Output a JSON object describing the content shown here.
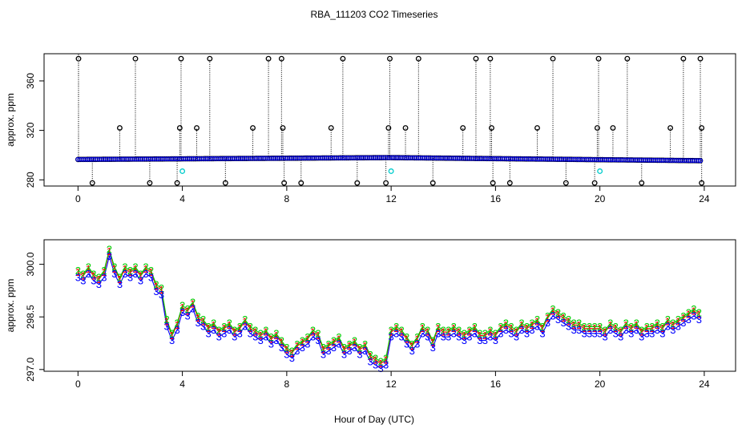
{
  "chart_data": [
    {
      "type": "scatter",
      "title": "RBA_111203  CO2 Timeseries",
      "ylabel": "approx. ppm",
      "xlim": [
        -1.3,
        25.2
      ],
      "ylim": [
        275,
        382
      ],
      "xticks": [
        0,
        4,
        8,
        12,
        16,
        20,
        24
      ],
      "yticks": [
        280,
        320,
        360
      ],
      "grid": false,
      "colors": {
        "raw": "#000000",
        "flagged": "#00cccc",
        "filtered": "#0000ff"
      },
      "baseline": {
        "x_start": 0.0,
        "x_end": 23.9,
        "y_start": 296.5,
        "y_mid": 298.0,
        "y_end": 295.5
      },
      "high_spikes_x": [
        0.02,
        2.2,
        3.95,
        5.05,
        7.3,
        7.8,
        10.15,
        11.95,
        13.05,
        15.25,
        15.8,
        18.2,
        19.95,
        21.05,
        23.2,
        23.85
      ],
      "mid_spikes_x": [
        1.6,
        3.9,
        4.55,
        6.7,
        7.85,
        9.7,
        11.9,
        12.55,
        14.75,
        15.85,
        17.6,
        19.9,
        20.5,
        22.7,
        23.9
      ],
      "low_spikes_x": [
        0.55,
        2.75,
        3.8,
        5.65,
        7.9,
        8.55,
        10.7,
        11.8,
        13.6,
        15.9,
        16.55,
        18.7,
        19.8,
        21.6,
        23.9
      ],
      "flagged_points": [
        {
          "x": 4.0,
          "y": 287
        },
        {
          "x": 12.0,
          "y": 287
        },
        {
          "x": 20.0,
          "y": 287
        }
      ]
    },
    {
      "type": "line",
      "title": "",
      "ylabel": "approx. ppm",
      "xlabel": "Hour of Day (UTC)",
      "xlim": [
        -1.3,
        25.2
      ],
      "ylim": [
        296.95,
        300.7
      ],
      "xticks": [
        0,
        4,
        8,
        12,
        16,
        20,
        24
      ],
      "yticks": [
        297.0,
        298.5,
        300.0
      ],
      "grid": false,
      "series": [
        {
          "symbol": "1",
          "color": "#ff0000",
          "offset": 0.07
        },
        {
          "symbol": "2",
          "color": "#00cc00",
          "offset": 0.12
        },
        {
          "symbol": "3",
          "color": "#0000ff",
          "offset": -0.07
        }
      ],
      "x": [
        0.0,
        0.2,
        0.4,
        0.6,
        0.8,
        1.0,
        1.2,
        1.4,
        1.6,
        1.8,
        2.0,
        2.2,
        2.4,
        2.6,
        2.8,
        3.0,
        3.2,
        3.4,
        3.6,
        3.8,
        4.0,
        4.2,
        4.4,
        4.6,
        4.8,
        5.0,
        5.2,
        5.4,
        5.6,
        5.8,
        6.0,
        6.2,
        6.4,
        6.6,
        6.8,
        7.0,
        7.2,
        7.4,
        7.6,
        7.8,
        8.0,
        8.2,
        8.4,
        8.6,
        8.8,
        9.0,
        9.2,
        9.4,
        9.6,
        9.8,
        10.0,
        10.2,
        10.4,
        10.6,
        10.8,
        11.0,
        11.2,
        11.4,
        11.6,
        11.8,
        12.0,
        12.2,
        12.4,
        12.6,
        12.8,
        13.0,
        13.2,
        13.4,
        13.6,
        13.8,
        14.0,
        14.2,
        14.4,
        14.6,
        14.8,
        15.0,
        15.2,
        15.4,
        15.6,
        15.8,
        16.0,
        16.2,
        16.4,
        16.6,
        16.8,
        17.0,
        17.2,
        17.4,
        17.6,
        17.8,
        18.0,
        18.2,
        18.4,
        18.6,
        18.8,
        19.0,
        19.2,
        19.4,
        19.6,
        19.8,
        20.0,
        20.2,
        20.4,
        20.6,
        20.8,
        21.0,
        21.2,
        21.4,
        21.6,
        21.8,
        22.0,
        22.2,
        22.4,
        22.6,
        22.8,
        23.0,
        23.2,
        23.4,
        23.6,
        23.8
      ],
      "y": [
        299.7,
        299.6,
        299.8,
        299.6,
        299.5,
        299.7,
        300.3,
        299.8,
        299.5,
        299.8,
        299.7,
        299.8,
        299.6,
        299.8,
        299.7,
        299.3,
        299.2,
        298.3,
        297.9,
        298.2,
        298.7,
        298.6,
        298.8,
        298.4,
        298.3,
        298.1,
        298.2,
        298.0,
        298.1,
        298.2,
        298.0,
        298.1,
        298.3,
        298.1,
        298.0,
        297.9,
        298.0,
        297.8,
        297.9,
        297.7,
        297.5,
        297.4,
        297.6,
        297.7,
        297.8,
        298.0,
        297.9,
        297.5,
        297.6,
        297.7,
        297.8,
        297.5,
        297.6,
        297.7,
        297.5,
        297.6,
        297.3,
        297.2,
        297.1,
        297.2,
        298.0,
        298.1,
        298.0,
        297.8,
        297.6,
        297.8,
        298.1,
        298.0,
        297.7,
        298.1,
        298.0,
        298.0,
        298.1,
        298.0,
        297.9,
        298.0,
        298.1,
        297.9,
        297.9,
        298.0,
        297.9,
        298.1,
        298.2,
        298.1,
        298.0,
        298.2,
        298.1,
        298.2,
        298.3,
        298.1,
        298.4,
        298.6,
        298.5,
        298.4,
        298.3,
        298.2,
        298.2,
        298.1,
        298.1,
        298.1,
        298.1,
        298.0,
        298.2,
        298.1,
        298.0,
        298.2,
        298.1,
        298.2,
        298.0,
        298.1,
        298.1,
        298.2,
        298.1,
        298.3,
        298.2,
        298.3,
        298.4,
        298.5,
        298.6,
        298.5
      ]
    }
  ]
}
